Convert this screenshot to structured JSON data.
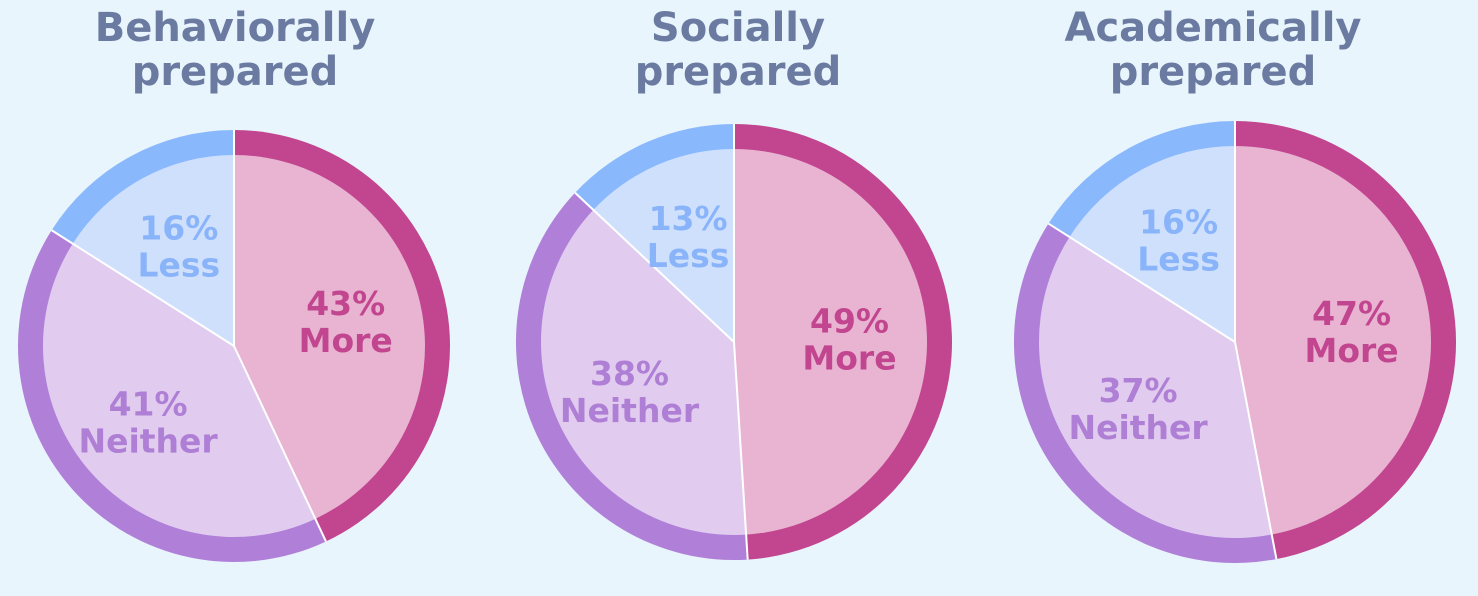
{
  "colors": {
    "background": "#e8f5fc",
    "title": "#6b7aa0",
    "more": {
      "ring": "#c2468f",
      "fill": "#e8b4d2",
      "text": "#c2468f"
    },
    "neither": {
      "ring": "#b07fd8",
      "fill": "#e1ccf0",
      "text": "#ae7fd4"
    },
    "less": {
      "ring": "#8ab8fd",
      "fill": "#cfe0fd",
      "text": "#8ab4fa"
    }
  },
  "chart_data": [
    {
      "type": "pie",
      "title": [
        "Behaviorally",
        "prepared"
      ],
      "slices": [
        {
          "key": "more",
          "label": "More",
          "percent_text": "43%",
          "value": 43
        },
        {
          "key": "neither",
          "label": "Neither",
          "percent_text": "41%",
          "value": 41
        },
        {
          "key": "less",
          "label": "Less",
          "percent_text": "16%",
          "value": 16
        }
      ]
    },
    {
      "type": "pie",
      "title": [
        "Socially",
        "prepared"
      ],
      "slices": [
        {
          "key": "more",
          "label": "More",
          "percent_text": "49%",
          "value": 49
        },
        {
          "key": "neither",
          "label": "Neither",
          "percent_text": "38%",
          "value": 38
        },
        {
          "key": "less",
          "label": "Less",
          "percent_text": "13%",
          "value": 13
        }
      ]
    },
    {
      "type": "pie",
      "title": [
        "Academically",
        "prepared"
      ],
      "slices": [
        {
          "key": "more",
          "label": "More",
          "percent_text": "47%",
          "value": 47
        },
        {
          "key": "neither",
          "label": "Neither",
          "percent_text": "37%",
          "value": 37
        },
        {
          "key": "less",
          "label": "Less",
          "percent_text": "16%",
          "value": 16
        }
      ]
    }
  ]
}
